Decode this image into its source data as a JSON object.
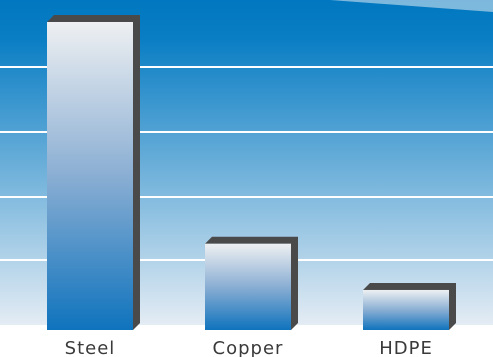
{
  "chart_data": {
    "type": "bar",
    "title": "",
    "xlabel": "",
    "ylabel": "",
    "categories": [
      "Steel",
      "Copper",
      "HDPE"
    ],
    "values": [
      100,
      28,
      13
    ],
    "ylim": [
      0,
      100
    ],
    "grid": true,
    "legend": "none"
  },
  "colors": {
    "plot_bg_top": "#0077c0",
    "plot_bg_bottom": "#e4ecf4",
    "gridline": "#ffffff",
    "bar_top": "#eef0f2",
    "bar_bottom": "#0f73bd",
    "bar_shadow": "#4a4a4a",
    "label_text": "#3a3a3a"
  }
}
